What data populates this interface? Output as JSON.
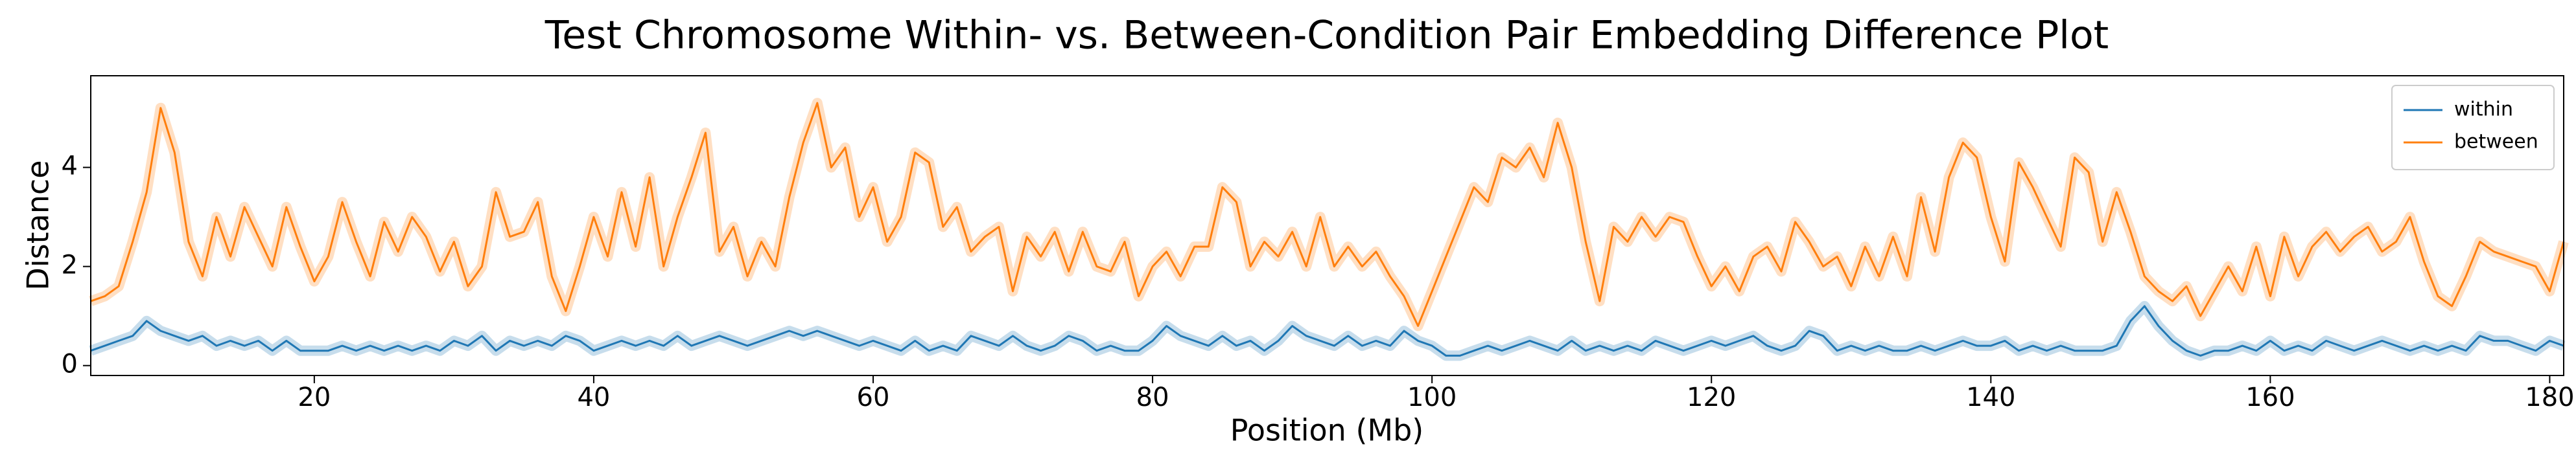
{
  "chart_data": {
    "type": "line",
    "title": "Test Chromosome Within- vs. Between-Condition Pair Embedding Difference Plot",
    "xlabel": "Position (Mb)",
    "ylabel": "Distance",
    "x": [
      4,
      5,
      6,
      7,
      8,
      9,
      10,
      11,
      12,
      13,
      14,
      15,
      16,
      17,
      18,
      19,
      20,
      21,
      22,
      23,
      24,
      25,
      26,
      27,
      28,
      29,
      30,
      31,
      32,
      33,
      34,
      35,
      36,
      37,
      38,
      39,
      40,
      41,
      42,
      43,
      44,
      45,
      46,
      47,
      48,
      49,
      50,
      51,
      52,
      53,
      54,
      55,
      56,
      57,
      58,
      59,
      60,
      61,
      62,
      63,
      64,
      65,
      66,
      67,
      68,
      69,
      70,
      71,
      72,
      73,
      74,
      75,
      76,
      77,
      78,
      79,
      80,
      81,
      82,
      83,
      84,
      85,
      86,
      87,
      88,
      89,
      90,
      91,
      92,
      93,
      94,
      95,
      96,
      97,
      98,
      99,
      100,
      101,
      102,
      103,
      104,
      105,
      106,
      107,
      108,
      109,
      110,
      111,
      112,
      113,
      114,
      115,
      116,
      117,
      118,
      119,
      120,
      121,
      122,
      123,
      124,
      125,
      126,
      127,
      128,
      129,
      130,
      131,
      132,
      133,
      134,
      135,
      136,
      137,
      138,
      139,
      140,
      141,
      142,
      143,
      144,
      145,
      146,
      147,
      148,
      149,
      150,
      151,
      152,
      153,
      154,
      155,
      156,
      157,
      158,
      159,
      160,
      161,
      162,
      163,
      164,
      165,
      166,
      167,
      168,
      169,
      170,
      171,
      172,
      173,
      174,
      175,
      176,
      177,
      178,
      179,
      180,
      181
    ],
    "series": [
      {
        "name": "within",
        "color": "#1f77b4",
        "values": [
          0.3,
          0.4,
          0.5,
          0.6,
          0.9,
          0.7,
          0.6,
          0.5,
          0.6,
          0.4,
          0.5,
          0.4,
          0.5,
          0.3,
          0.5,
          0.3,
          0.3,
          0.3,
          0.4,
          0.3,
          0.4,
          0.3,
          0.4,
          0.3,
          0.4,
          0.3,
          0.5,
          0.4,
          0.6,
          0.3,
          0.5,
          0.4,
          0.5,
          0.4,
          0.6,
          0.5,
          0.3,
          0.4,
          0.5,
          0.4,
          0.5,
          0.4,
          0.6,
          0.4,
          0.5,
          0.6,
          0.5,
          0.4,
          0.5,
          0.6,
          0.7,
          0.6,
          0.7,
          0.6,
          0.5,
          0.4,
          0.5,
          0.4,
          0.3,
          0.5,
          0.3,
          0.4,
          0.3,
          0.6,
          0.5,
          0.4,
          0.6,
          0.4,
          0.3,
          0.4,
          0.6,
          0.5,
          0.3,
          0.4,
          0.3,
          0.3,
          0.5,
          0.8,
          0.6,
          0.5,
          0.4,
          0.6,
          0.4,
          0.5,
          0.3,
          0.5,
          0.8,
          0.6,
          0.5,
          0.4,
          0.6,
          0.4,
          0.5,
          0.4,
          0.7,
          0.5,
          0.4,
          0.2,
          0.2,
          0.3,
          0.4,
          0.3,
          0.4,
          0.5,
          0.4,
          0.3,
          0.5,
          0.3,
          0.4,
          0.3,
          0.4,
          0.3,
          0.5,
          0.4,
          0.3,
          0.4,
          0.5,
          0.4,
          0.5,
          0.6,
          0.4,
          0.3,
          0.4,
          0.7,
          0.6,
          0.3,
          0.4,
          0.3,
          0.4,
          0.3,
          0.3,
          0.4,
          0.3,
          0.4,
          0.5,
          0.4,
          0.4,
          0.5,
          0.3,
          0.4,
          0.3,
          0.4,
          0.3,
          0.3,
          0.3,
          0.4,
          0.9,
          1.2,
          0.8,
          0.5,
          0.3,
          0.2,
          0.3,
          0.3,
          0.4,
          0.3,
          0.5,
          0.3,
          0.4,
          0.3,
          0.5,
          0.4,
          0.3,
          0.4,
          0.5,
          0.4,
          0.3,
          0.4,
          0.3,
          0.4,
          0.3,
          0.6,
          0.5,
          0.5,
          0.4,
          0.3,
          0.5,
          0.4
        ]
      },
      {
        "name": "between",
        "color": "#ff7f0e",
        "values": [
          1.3,
          1.4,
          1.6,
          2.5,
          3.5,
          5.2,
          4.3,
          2.5,
          1.8,
          3.0,
          2.2,
          3.2,
          2.6,
          2.0,
          3.2,
          2.4,
          1.7,
          2.2,
          3.3,
          2.5,
          1.8,
          2.9,
          2.3,
          3.0,
          2.6,
          1.9,
          2.5,
          1.6,
          2.0,
          3.5,
          2.6,
          2.7,
          3.3,
          1.8,
          1.1,
          2.0,
          3.0,
          2.2,
          3.5,
          2.4,
          3.8,
          2.0,
          3.0,
          3.8,
          4.7,
          2.3,
          2.8,
          1.8,
          2.5,
          2.0,
          3.4,
          4.5,
          5.3,
          4.0,
          4.4,
          3.0,
          3.6,
          2.5,
          3.0,
          4.3,
          4.1,
          2.8,
          3.2,
          2.3,
          2.6,
          2.8,
          1.5,
          2.6,
          2.2,
          2.7,
          1.9,
          2.7,
          2.0,
          1.9,
          2.5,
          1.4,
          2.0,
          2.3,
          1.8,
          2.4,
          2.4,
          3.6,
          3.3,
          2.0,
          2.5,
          2.2,
          2.7,
          2.0,
          3.0,
          2.0,
          2.4,
          2.0,
          2.3,
          1.8,
          1.4,
          0.8,
          1.5,
          2.2,
          2.9,
          3.6,
          3.3,
          4.2,
          4.0,
          4.4,
          3.8,
          4.9,
          4.0,
          2.5,
          1.3,
          2.8,
          2.5,
          3.0,
          2.6,
          3.0,
          2.9,
          2.2,
          1.6,
          2.0,
          1.5,
          2.2,
          2.4,
          1.9,
          2.9,
          2.5,
          2.0,
          2.2,
          1.6,
          2.4,
          1.8,
          2.6,
          1.8,
          3.4,
          2.3,
          3.8,
          4.5,
          4.2,
          3.0,
          2.1,
          4.1,
          3.6,
          3.0,
          2.4,
          4.2,
          3.9,
          2.5,
          3.5,
          2.7,
          1.8,
          1.5,
          1.3,
          1.6,
          1.0,
          1.5,
          2.0,
          1.5,
          2.4,
          1.4,
          2.6,
          1.8,
          2.4,
          2.7,
          2.3,
          2.6,
          2.8,
          2.3,
          2.5,
          3.0,
          2.1,
          1.4,
          1.2,
          1.8,
          2.5,
          2.3,
          2.2,
          2.1,
          2.0,
          1.5,
          2.5
        ]
      }
    ],
    "xlim": [
      4,
      181
    ],
    "ylim": [
      -0.2,
      5.85
    ],
    "xticks": [
      20,
      40,
      60,
      80,
      100,
      120,
      140,
      160,
      180
    ],
    "yticks": [
      0,
      2,
      4
    ],
    "legend": "upper right"
  }
}
